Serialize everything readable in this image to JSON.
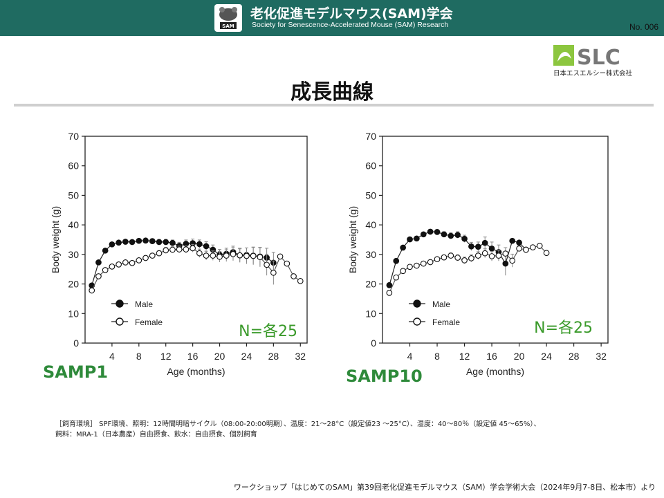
{
  "header": {
    "title": "老化促進モデルマウス(SAM)学会",
    "subtitle": "Society for Senescence-Accelerated Mouse (SAM) Research",
    "logo_text": "SAM",
    "number": "No. 006"
  },
  "brand": {
    "logo_text": "SLC",
    "company": "日本エスエルシー株式会社",
    "color": "#8cc63f"
  },
  "page_title": "成長曲線",
  "chart_data": [
    {
      "type": "line",
      "label": "SAMP1",
      "annotation": "N=各25",
      "xlabel": "Age (months)",
      "ylabel": "Body weight (g)",
      "xlim": [
        0,
        33
      ],
      "ylim": [
        0,
        70
      ],
      "xticks": [
        4,
        8,
        12,
        16,
        20,
        24,
        28,
        32
      ],
      "yticks": [
        0,
        10,
        20,
        30,
        40,
        50,
        60,
        70
      ],
      "legend_position": "bottom-left",
      "series": [
        {
          "name": "Male",
          "marker": "filled",
          "x": [
            1,
            2,
            3,
            4,
            5,
            6,
            7,
            8,
            9,
            10,
            11,
            12,
            13,
            14,
            15,
            16,
            17,
            18,
            19,
            20,
            21,
            22,
            23,
            24,
            25,
            26,
            27,
            28
          ],
          "y": [
            19.5,
            27.3,
            31.3,
            33.4,
            34.0,
            34.3,
            34.2,
            34.6,
            34.7,
            34.5,
            34.2,
            34.2,
            33.9,
            32.9,
            33.6,
            33.8,
            33.5,
            32.8,
            31.6,
            29.9,
            30.2,
            30.8,
            29.7,
            29.8,
            29.6,
            29.3,
            28.9,
            27.2
          ],
          "err": [
            0.5,
            0.5,
            0.5,
            0.6,
            0.6,
            0.6,
            0.6,
            0.7,
            0.7,
            0.8,
            0.9,
            0.9,
            1.0,
            1.2,
            1.3,
            1.4,
            1.4,
            1.5,
            1.6,
            1.8,
            1.9,
            2.0,
            2.2,
            2.4,
            2.8,
            3.0,
            3.2,
            3.5
          ]
        },
        {
          "name": "Female",
          "marker": "open",
          "x": [
            1,
            2,
            3,
            4,
            5,
            6,
            7,
            8,
            9,
            10,
            11,
            12,
            13,
            14,
            15,
            16,
            17,
            18,
            19,
            20,
            21,
            22,
            23,
            24,
            25,
            26,
            27,
            28,
            29,
            30,
            31,
            32
          ],
          "y": [
            17.8,
            22.6,
            24.7,
            25.9,
            26.6,
            27.3,
            27.1,
            28.0,
            28.8,
            29.6,
            30.4,
            31.4,
            31.6,
            31.7,
            31.7,
            32.1,
            30.4,
            29.6,
            29.6,
            29.2,
            29.6,
            30.1,
            29.7,
            29.5,
            29.5,
            29.1,
            26.5,
            23.8,
            29.3,
            26.9,
            22.6,
            21.0
          ],
          "err": [
            0.4,
            0.5,
            0.5,
            0.6,
            0.6,
            0.6,
            0.7,
            0.7,
            0.8,
            0.8,
            0.9,
            1.0,
            1.0,
            1.1,
            1.2,
            1.3,
            1.4,
            1.5,
            1.6,
            1.8,
            2.0,
            2.2,
            2.4,
            2.7,
            3.0,
            3.3,
            3.6,
            4.0,
            0.5,
            0.5,
            0.5,
            0.5
          ]
        }
      ]
    },
    {
      "type": "line",
      "label": "SAMP10",
      "annotation": "N=各25",
      "xlabel": "Age (months)",
      "ylabel": "Body weight (g)",
      "xlim": [
        0,
        33
      ],
      "ylim": [
        0,
        70
      ],
      "xticks": [
        4,
        8,
        12,
        16,
        20,
        24,
        28,
        32
      ],
      "yticks": [
        0,
        10,
        20,
        30,
        40,
        50,
        60,
        70
      ],
      "legend_position": "bottom-left",
      "series": [
        {
          "name": "Male",
          "marker": "filled",
          "x": [
            1,
            2,
            3,
            4,
            5,
            6,
            7,
            8,
            9,
            10,
            11,
            12,
            13,
            14,
            15,
            16,
            17,
            18,
            19,
            20,
            21
          ],
          "y": [
            19.6,
            27.8,
            32.3,
            35.1,
            35.4,
            36.8,
            37.7,
            37.6,
            36.8,
            36.3,
            36.6,
            35.3,
            32.7,
            32.6,
            33.9,
            32.0,
            30.8,
            26.9,
            34.6,
            34.0,
            31.6
          ],
          "err": [
            0.5,
            0.5,
            0.6,
            0.6,
            0.7,
            0.7,
            0.8,
            0.8,
            0.9,
            1.0,
            1.1,
            1.2,
            1.4,
            1.6,
            2.0,
            2.2,
            2.4,
            4.0,
            0.5,
            0.6,
            0.6
          ]
        },
        {
          "name": "Female",
          "marker": "open",
          "x": [
            1,
            2,
            3,
            4,
            5,
            6,
            7,
            8,
            9,
            10,
            11,
            12,
            13,
            14,
            15,
            16,
            17,
            18,
            19,
            20,
            21,
            22,
            23,
            24
          ],
          "y": [
            17.0,
            22.2,
            24.4,
            25.8,
            26.2,
            26.9,
            27.4,
            28.4,
            29.0,
            29.6,
            28.9,
            28.0,
            28.7,
            29.6,
            30.4,
            29.4,
            29.6,
            30.3,
            27.9,
            32.0,
            31.6,
            32.4,
            32.9,
            30.5
          ],
          "err": [
            0.4,
            0.5,
            0.5,
            0.6,
            0.6,
            0.6,
            0.7,
            0.7,
            0.8,
            0.9,
            1.0,
            1.1,
            1.2,
            1.3,
            1.5,
            1.6,
            1.8,
            2.0,
            2.2,
            0.5,
            0.5,
            0.5,
            0.5,
            0.5
          ]
        }
      ]
    }
  ],
  "notes": [
    "［飼育環境］ SPF環境、照明：12時間明暗サイクル（08:00-20:00明期）、温度：21～28°C（設定値23 ～25°C）、湿度：40～80％（設定値 45～65%）、",
    "飼料：MRA-1（日本農産）自由摂食、飲水：自由摂食、個別飼育"
  ],
  "credit": "ワークショップ「はじめてのSAM」第39回老化促進モデルマウス（SAM）学会学術大会（2024年9月7-8日、松本市）より"
}
